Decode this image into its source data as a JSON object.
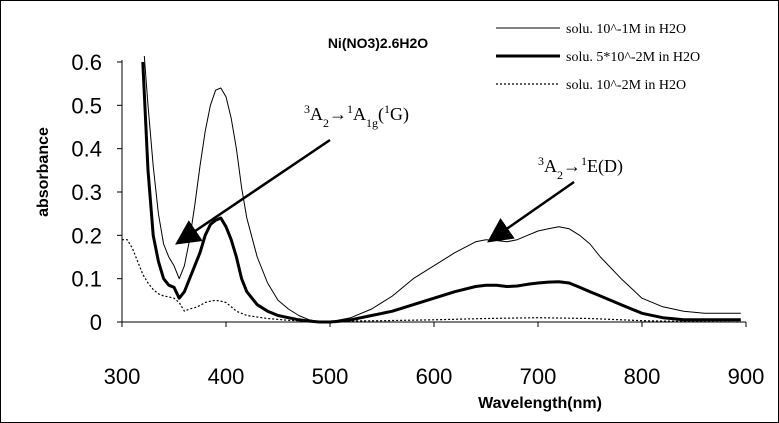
{
  "chart_data": {
    "type": "line",
    "title": "Ni(NO3)2.6H2O",
    "xlabel": "Wavelength(nm)",
    "ylabel": "absorbance",
    "xlim": [
      300,
      900
    ],
    "ylim": [
      0,
      0.6
    ],
    "x_ticks": [
      "300",
      "400",
      "500",
      "600",
      "700",
      "800",
      "900"
    ],
    "y_ticks": [
      "0",
      "0.1",
      "0.2",
      "0.3",
      "0.4",
      "0.5",
      "0.6"
    ],
    "legend_position": "top-right",
    "grid": false,
    "series": [
      {
        "name": "solu. 10^-1M in H2O",
        "style": "thin",
        "x": [
          320,
          325,
          330,
          335,
          340,
          345,
          350,
          355,
          360,
          365,
          370,
          375,
          380,
          385,
          390,
          395,
          400,
          405,
          410,
          415,
          420,
          430,
          440,
          450,
          460,
          470,
          480,
          490,
          500,
          510,
          520,
          540,
          560,
          580,
          600,
          620,
          640,
          650,
          660,
          670,
          680,
          690,
          700,
          710,
          720,
          730,
          740,
          750,
          760,
          780,
          800,
          820,
          840,
          860,
          880,
          895
        ],
        "y": [
          0.66,
          0.5,
          0.36,
          0.25,
          0.18,
          0.15,
          0.13,
          0.1,
          0.13,
          0.19,
          0.27,
          0.36,
          0.44,
          0.5,
          0.535,
          0.54,
          0.52,
          0.47,
          0.4,
          0.31,
          0.24,
          0.15,
          0.09,
          0.05,
          0.03,
          0.015,
          0.005,
          0.0,
          0.0,
          0.005,
          0.01,
          0.03,
          0.06,
          0.1,
          0.13,
          0.16,
          0.185,
          0.19,
          0.188,
          0.185,
          0.19,
          0.2,
          0.21,
          0.215,
          0.22,
          0.215,
          0.2,
          0.18,
          0.15,
          0.1,
          0.055,
          0.035,
          0.025,
          0.02,
          0.02,
          0.02
        ]
      },
      {
        "name": "solu. 5*10^-2M in H2O",
        "style": "thick",
        "x": [
          320,
          325,
          330,
          335,
          340,
          345,
          350,
          355,
          360,
          365,
          370,
          375,
          380,
          385,
          390,
          395,
          400,
          405,
          410,
          415,
          420,
          430,
          440,
          450,
          460,
          470,
          480,
          490,
          500,
          510,
          520,
          540,
          560,
          580,
          600,
          620,
          640,
          650,
          660,
          670,
          680,
          690,
          700,
          710,
          720,
          730,
          740,
          750,
          760,
          780,
          800,
          820,
          840,
          860,
          880,
          895
        ],
        "y": [
          0.6,
          0.35,
          0.2,
          0.14,
          0.1,
          0.085,
          0.08,
          0.055,
          0.07,
          0.1,
          0.13,
          0.16,
          0.2,
          0.225,
          0.235,
          0.24,
          0.22,
          0.19,
          0.15,
          0.1,
          0.07,
          0.04,
          0.025,
          0.015,
          0.01,
          0.005,
          0.002,
          0.0,
          0.0,
          0.002,
          0.005,
          0.015,
          0.025,
          0.04,
          0.055,
          0.07,
          0.082,
          0.085,
          0.085,
          0.082,
          0.083,
          0.087,
          0.09,
          0.092,
          0.093,
          0.09,
          0.08,
          0.07,
          0.06,
          0.04,
          0.02,
          0.01,
          0.005,
          0.005,
          0.005,
          0.005
        ]
      },
      {
        "name": "solu. 10^-2M in H2O",
        "style": "dotted",
        "x": [
          300,
          305,
          310,
          315,
          320,
          325,
          330,
          335,
          340,
          345,
          350,
          355,
          360,
          365,
          370,
          375,
          380,
          385,
          390,
          395,
          400,
          405,
          410,
          420,
          440,
          460,
          480,
          500,
          550,
          600,
          650,
          700,
          750,
          800,
          850,
          895
        ],
        "y": [
          0.19,
          0.19,
          0.17,
          0.14,
          0.11,
          0.09,
          0.075,
          0.065,
          0.06,
          0.058,
          0.055,
          0.045,
          0.025,
          0.03,
          0.033,
          0.038,
          0.045,
          0.048,
          0.05,
          0.048,
          0.045,
          0.035,
          0.025,
          0.015,
          0.008,
          0.004,
          0.002,
          0.002,
          0.003,
          0.005,
          0.008,
          0.01,
          0.008,
          0.003,
          0.001,
          0.0
        ]
      }
    ],
    "annotations": [
      {
        "id": "a1",
        "text_parts": [
          {
            "t": "3",
            "sup": true
          },
          {
            "t": "A",
            "sup": false
          },
          {
            "t": "2",
            "sub": true
          },
          {
            "t": "→",
            "sup": false
          },
          {
            "t": "1",
            "sup": true
          },
          {
            "t": "A",
            "sup": false
          },
          {
            "t": "1g",
            "sub": true
          },
          {
            "t": "(",
            "sup": false
          },
          {
            "t": "1",
            "sup": true
          },
          {
            "t": "G)",
            "sup": false
          }
        ],
        "arrow_target": [
          355,
          0.185
        ]
      },
      {
        "id": "a2",
        "text_parts": [
          {
            "t": "3",
            "sup": true
          },
          {
            "t": "A",
            "sup": false
          },
          {
            "t": "2",
            "sub": true
          },
          {
            "t": "→",
            "sup": false
          },
          {
            "t": "1",
            "sup": true
          },
          {
            "t": "E(D)",
            "sup": false
          }
        ],
        "arrow_target": [
          655,
          0.19
        ]
      }
    ]
  }
}
